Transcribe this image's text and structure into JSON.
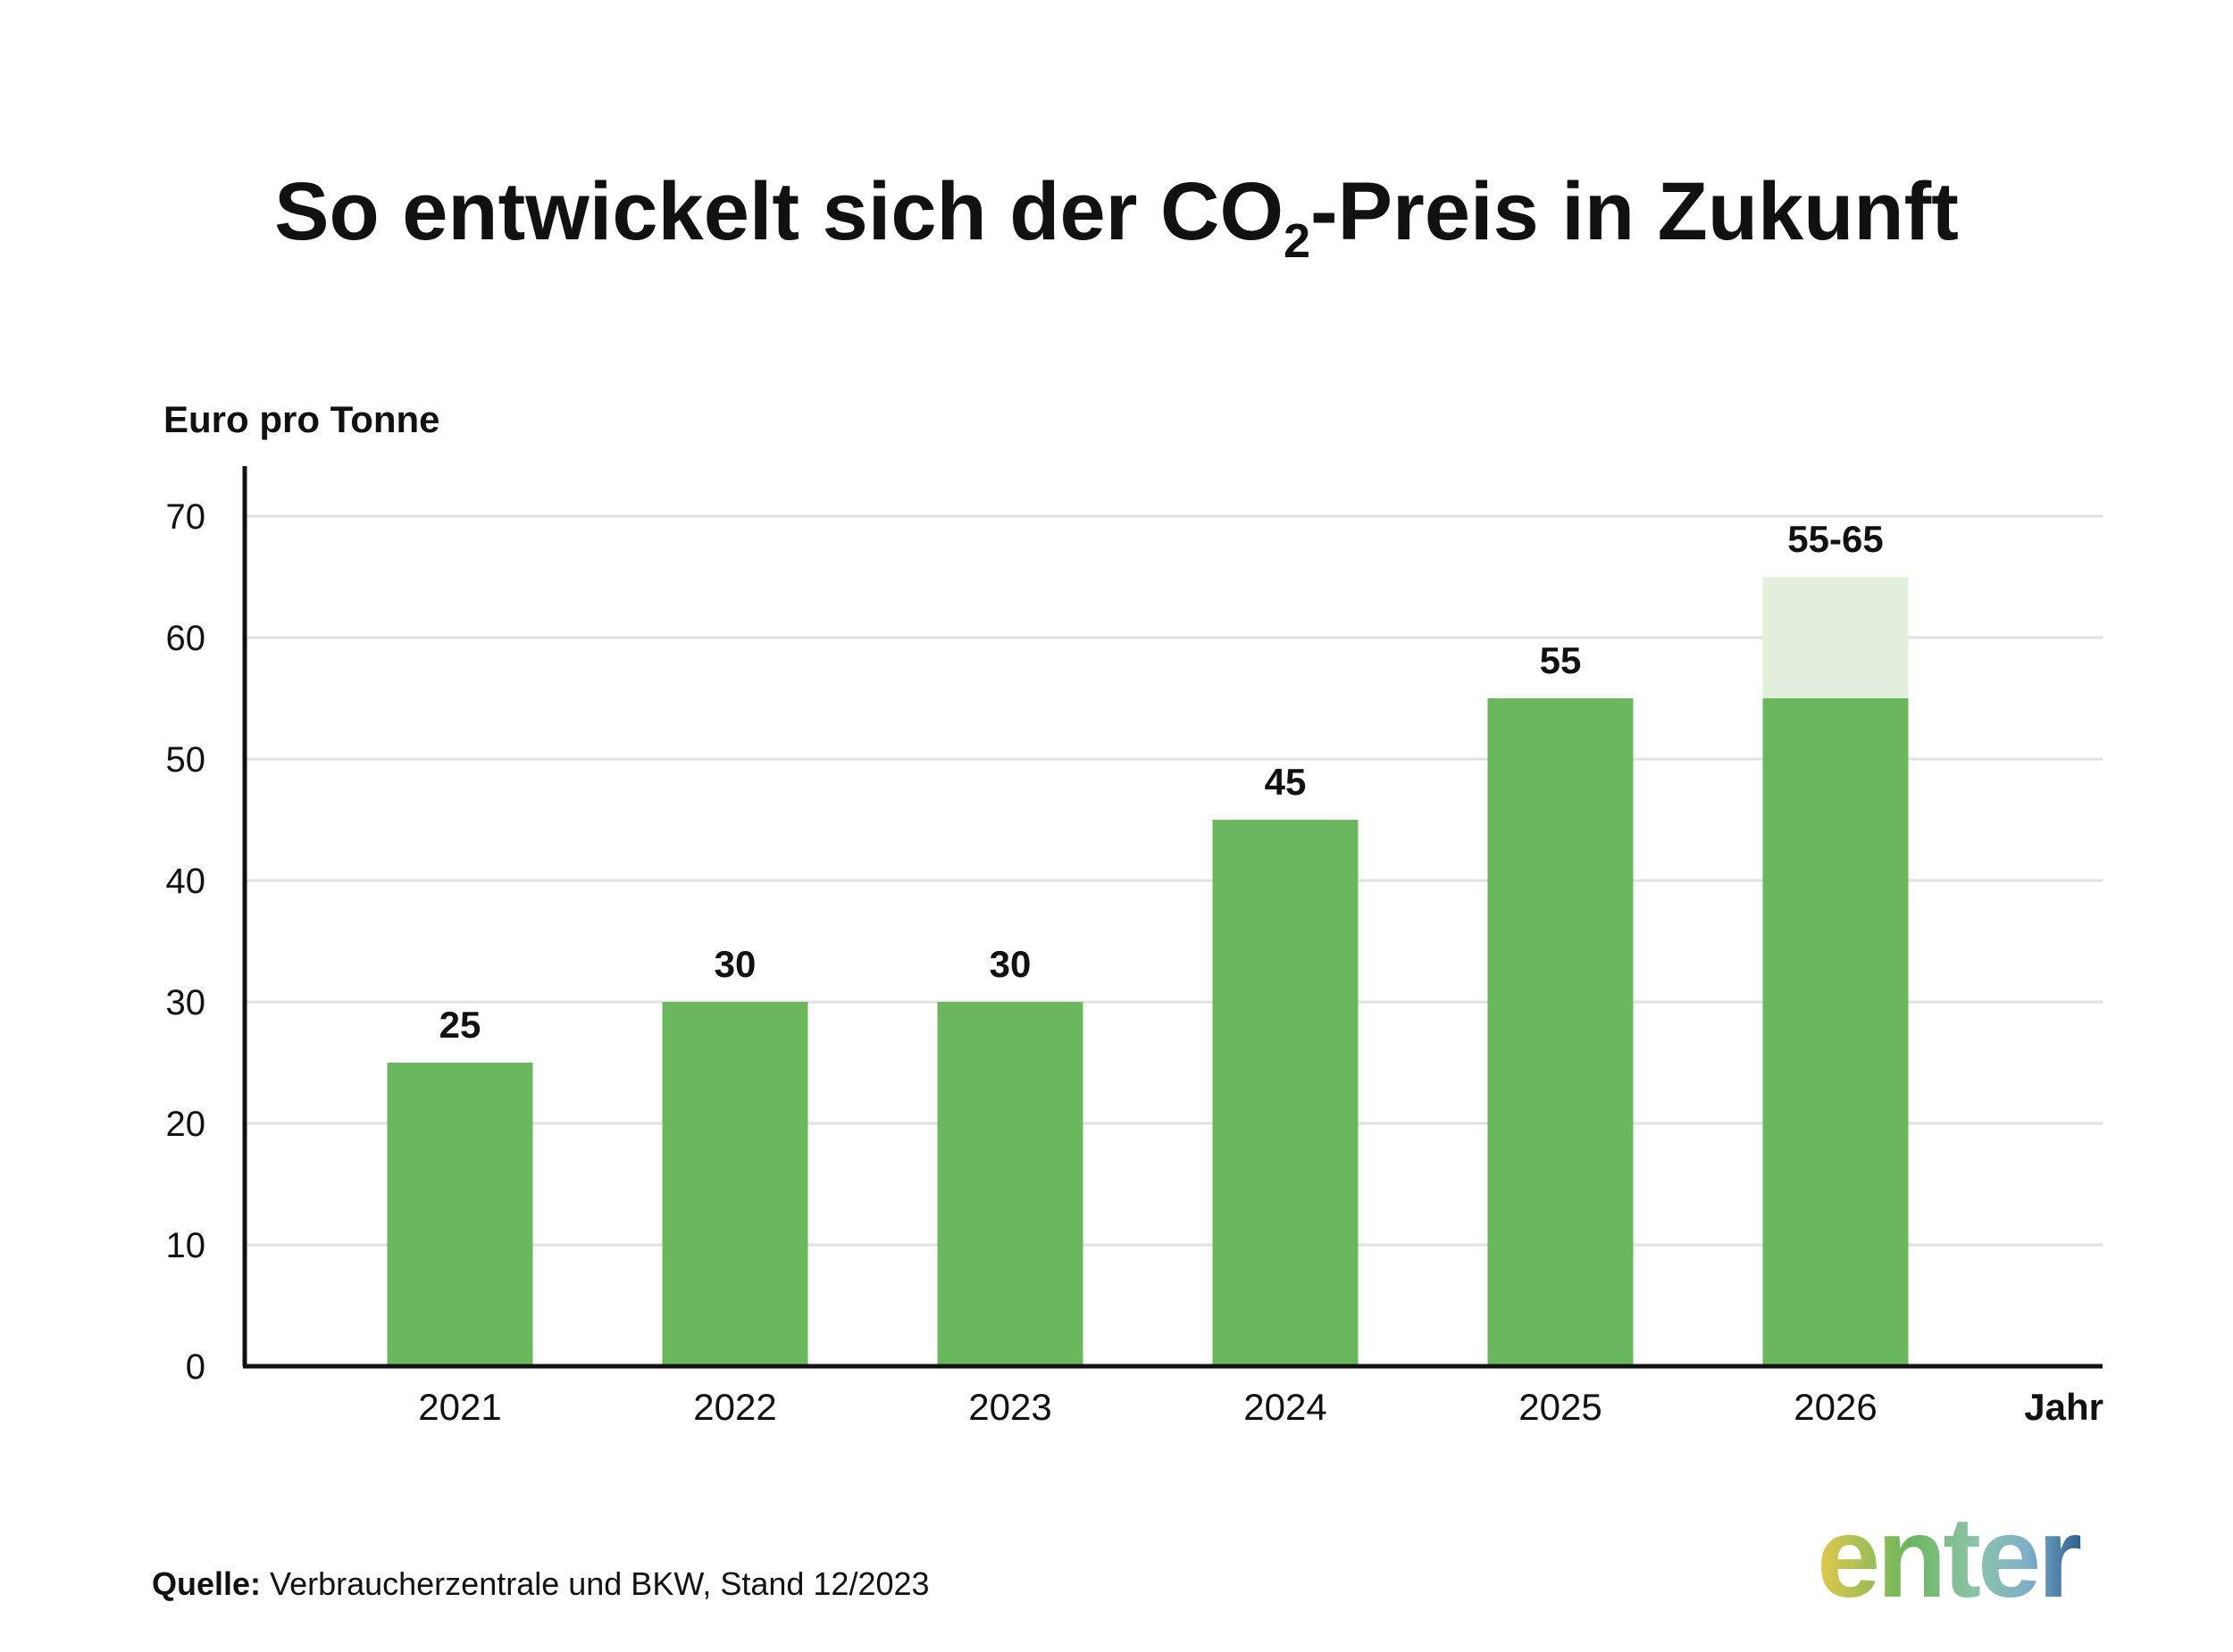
{
  "chart_data": {
    "type": "bar",
    "title": {
      "prefix": "So entwickelt sich der CO",
      "subscript": "2",
      "suffix": "-Preis in Zukunft"
    },
    "ylabel": "Euro pro Tonne",
    "xlabel": "Jahr",
    "ylim": [
      0,
      70
    ],
    "yticks": [
      0,
      10,
      20,
      30,
      40,
      50,
      60,
      70
    ],
    "grid": true,
    "categories": [
      "2021",
      "2022",
      "2023",
      "2024",
      "2025",
      "2026"
    ],
    "values": [
      25,
      30,
      30,
      45,
      55,
      55
    ],
    "range_upper": [
      null,
      null,
      null,
      null,
      null,
      65
    ],
    "data_labels": [
      "25",
      "30",
      "30",
      "45",
      "55",
      "55-65"
    ],
    "colors": {
      "bar": "#6bb75e",
      "range": "#e2f0db",
      "grid": "#e0e0e0",
      "axis": "#111111"
    }
  },
  "source": {
    "label": "Quelle:",
    "text": "Verbraucherzentrale und BKW, Stand 12/2023"
  },
  "logo": {
    "text": "enter",
    "colors": [
      "#e3c84b",
      "#6bb75e",
      "#8cc3a8",
      "#7fb0c8",
      "#2f5f8f"
    ]
  }
}
